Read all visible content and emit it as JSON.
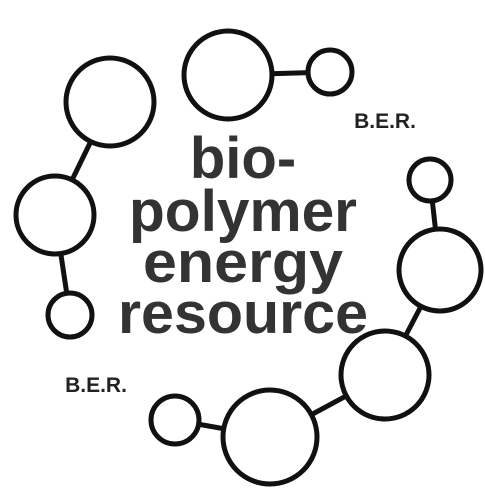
{
  "logo": {
    "lines": [
      "bio-",
      "polymer",
      "energy",
      "resource"
    ],
    "tag_top": "B.E.R.",
    "tag_bottom": "B.E.R."
  }
}
